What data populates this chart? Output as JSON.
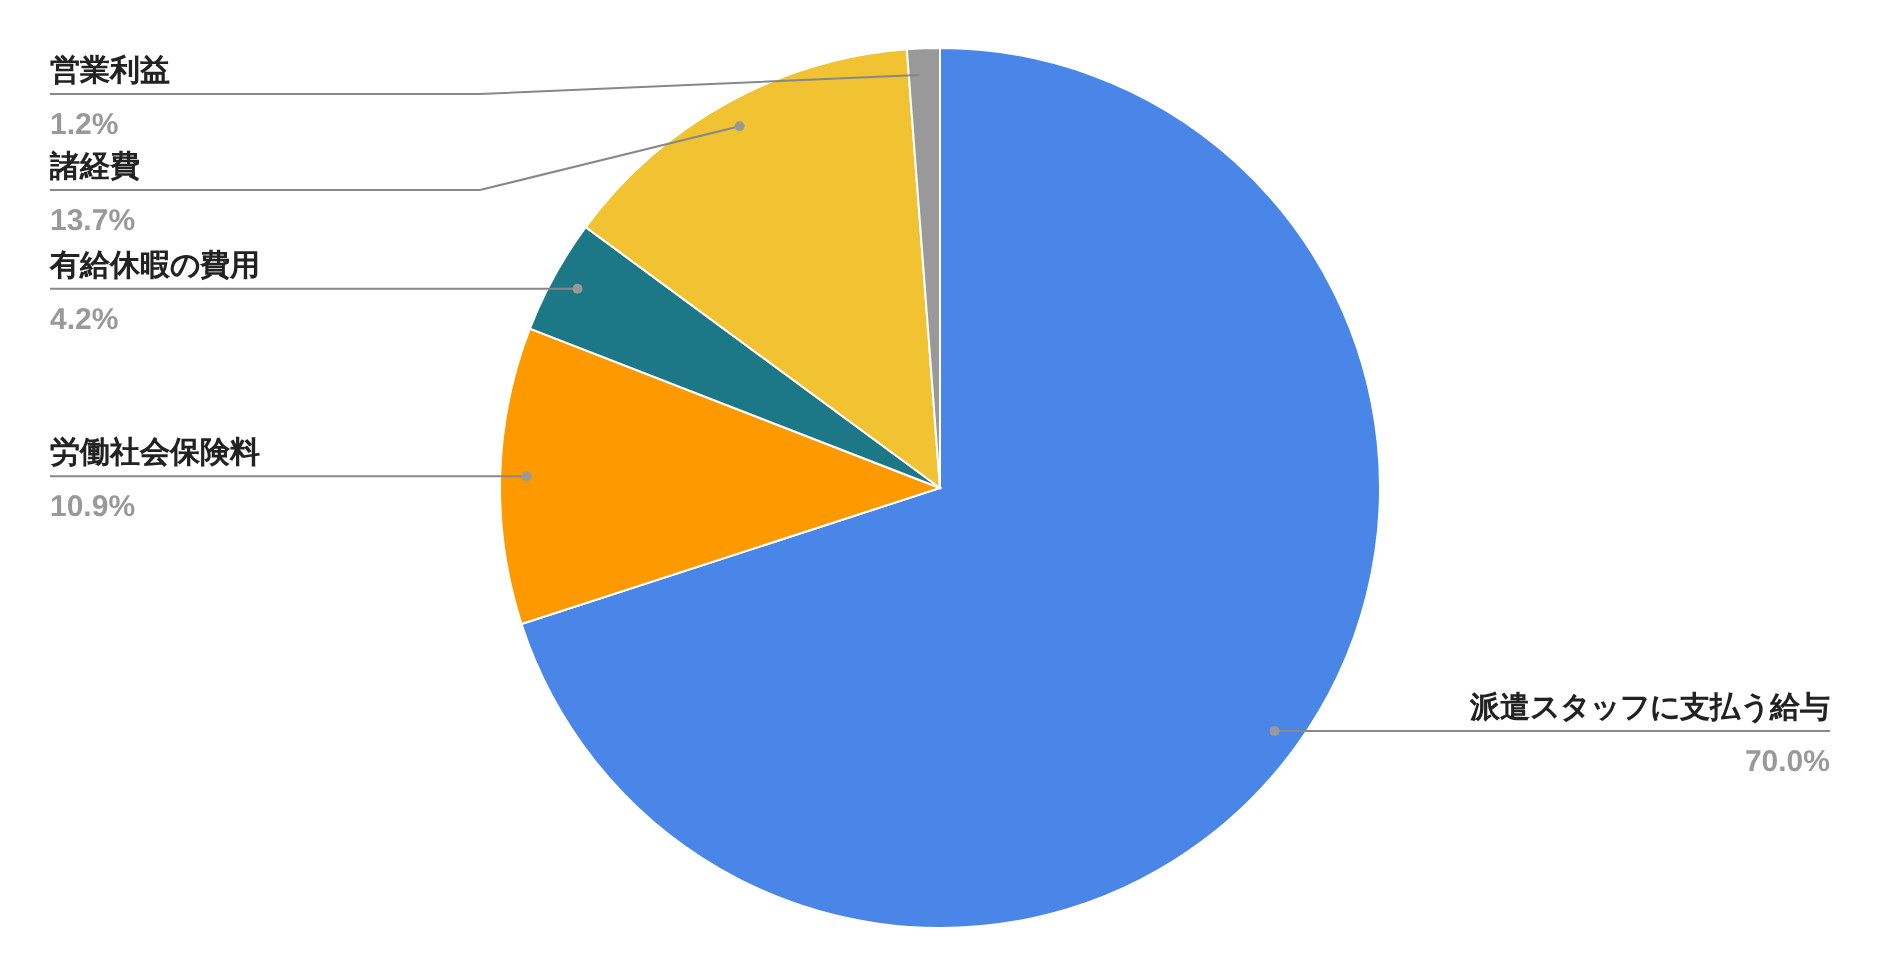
{
  "chart_data": {
    "type": "pie",
    "categories": [
      "派遣スタッフに支払う給与",
      "労働社会保険料",
      "有給休暇の費用",
      "諸経費",
      "営業利益"
    ],
    "values": [
      70.0,
      10.9,
      4.2,
      13.7,
      1.2
    ],
    "colors": [
      "#4a86e8",
      "#ff9900",
      "#1c7887",
      "#f1c232",
      "#999999"
    ],
    "value_labels": [
      "70.0%",
      "10.9%",
      "4.2%",
      "13.7%",
      "1.2%"
    ]
  }
}
